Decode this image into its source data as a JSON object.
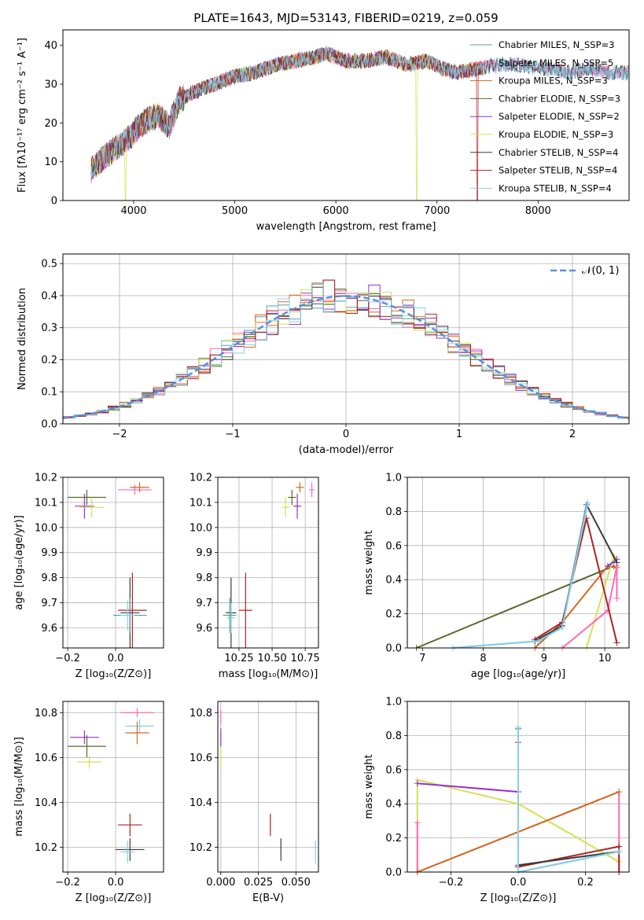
{
  "figure_title": "PLATE=1643, MJD=53143, FIBERID=0219, z=0.059",
  "colors": {
    "Chabrier MILES": "#5f9ea0",
    "Salpeter MILES": "#ff69b4",
    "Kroupa MILES": "#d2691e",
    "Chabrier ELODIE": "#556b2f",
    "Salpeter ELODIE": "#9932cc",
    "Kroupa ELODIE": "#d4e157",
    "Chabrier STELIB": "#3a3a3a",
    "Salpeter STELIB": "#b22222",
    "Kroupa STELIB": "#87ceeb",
    "normal_curve": "#5b8fdc"
  },
  "chart_data": [
    {
      "id": "spectrum",
      "type": "line",
      "xlabel": "wavelength [Angstrom, rest frame]",
      "ylabel": "Flux [fλ10⁻¹⁷ erg cm⁻² s⁻¹ A⁻¹]",
      "xlim": [
        3300,
        8900
      ],
      "ylim": [
        0,
        44
      ],
      "xticks": [
        4000,
        5000,
        6000,
        7000,
        8000
      ],
      "yticks": [
        0,
        10,
        20,
        30,
        40
      ],
      "grid": false,
      "legend": "top-right",
      "legend_entries": [
        "Chabrier MILES, N_SSP=3",
        "Salpeter MILES, N_SSP=5",
        "Kroupa MILES, N_SSP=3",
        "Chabrier ELODIE, N_SSP=3",
        "Salpeter ELODIE, N_SSP=2",
        "Kroupa ELODIE, N_SSP=3",
        "Chabrier STELIB, N_SSP=4",
        "Salpeter STELIB, N_SSP=4",
        "Kroupa STELIB, N_SSP=4"
      ],
      "legend_series": [
        "Chabrier MILES",
        "Salpeter MILES",
        "Kroupa MILES",
        "Chabrier ELODIE",
        "Salpeter ELODIE",
        "Kroupa ELODIE",
        "Chabrier STELIB",
        "Salpeter STELIB",
        "Kroupa STELIB"
      ],
      "continuum": [
        [
          3580,
          8
        ],
        [
          3650,
          10
        ],
        [
          3750,
          12
        ],
        [
          3850,
          14
        ],
        [
          3950,
          16
        ],
        [
          4050,
          19
        ],
        [
          4150,
          21
        ],
        [
          4250,
          22
        ],
        [
          4350,
          19
        ],
        [
          4450,
          26
        ],
        [
          4600,
          28
        ],
        [
          4800,
          30
        ],
        [
          5000,
          32
        ],
        [
          5200,
          33
        ],
        [
          5300,
          34
        ],
        [
          5400,
          35
        ],
        [
          5600,
          36
        ],
        [
          5800,
          37
        ],
        [
          5900,
          38
        ],
        [
          6100,
          36
        ],
        [
          6300,
          36
        ],
        [
          6500,
          37
        ],
        [
          6700,
          35
        ],
        [
          6900,
          36
        ],
        [
          7050,
          34
        ],
        [
          7200,
          33
        ],
        [
          7400,
          34
        ],
        [
          7600,
          35
        ],
        [
          7800,
          35
        ],
        [
          8000,
          34
        ],
        [
          8150,
          34
        ],
        [
          8300,
          33
        ],
        [
          8500,
          34
        ],
        [
          8700,
          33
        ],
        [
          8900,
          33
        ]
      ],
      "dropouts": [
        {
          "series": "Kroupa ELODIE",
          "x": 3920
        },
        {
          "series": "Kroupa ELODIE",
          "x": 6800
        },
        {
          "series": "Salpeter STELIB",
          "x": 7400
        }
      ]
    },
    {
      "id": "residuals",
      "type": "step",
      "xlabel": "(data-model)/error",
      "ylabel": "Normed distribution",
      "xlim": [
        -2.5,
        2.5
      ],
      "ylim": [
        0,
        0.53
      ],
      "xticks": [
        -2,
        -1,
        0,
        1,
        2
      ],
      "yticks": [
        0.0,
        0.1,
        0.2,
        0.3,
        0.4,
        0.5
      ],
      "grid": true,
      "legend": "top-right",
      "legend_entries": [
        "𝒩(0, 1)"
      ],
      "bin_width": 0.1
    },
    {
      "id": "age_vs_Z",
      "type": "errorbar",
      "xlabel": "Z [log₁₀(Z/Z⊙)]",
      "ylabel": "age  [log₁₀(age/yr)]",
      "xlim": [
        -0.22,
        0.2
      ],
      "ylim": [
        9.52,
        10.2
      ],
      "xticks": [
        -0.2,
        0.0
      ],
      "xticklabels": [
        "−0.2",
        "0.0"
      ],
      "yticks": [
        9.6,
        9.7,
        9.8,
        9.9,
        10.0,
        10.1,
        10.2
      ],
      "grid": true,
      "points": [
        {
          "series": "Chabrier ELODIE",
          "x": -0.12,
          "y": 10.12,
          "xerr": 0.08,
          "yerr": 0.03
        },
        {
          "series": "Salpeter ELODIE",
          "x": -0.13,
          "y": 10.085,
          "xerr": 0.04,
          "yerr": 0.05
        },
        {
          "series": "Kroupa ELODIE",
          "x": -0.1,
          "y": 10.08,
          "xerr": 0.05,
          "yerr": 0.04
        },
        {
          "series": "Salpeter MILES",
          "x": 0.08,
          "y": 10.15,
          "xerr": 0.07,
          "yerr": 0.02
        },
        {
          "series": "Kroupa MILES",
          "x": 0.1,
          "y": 10.16,
          "xerr": 0.04,
          "yerr": 0.02
        },
        {
          "series": "Chabrier STELIB",
          "x": 0.06,
          "y": 9.66,
          "xerr": 0.04,
          "yerr": 0.14
        },
        {
          "series": "Salpeter STELIB",
          "x": 0.07,
          "y": 9.67,
          "xerr": 0.06,
          "yerr": 0.15
        },
        {
          "series": "Chabrier MILES",
          "x": 0.06,
          "y": 9.65,
          "xerr": 0.07,
          "yerr": 0.07
        },
        {
          "series": "Kroupa STELIB",
          "x": 0.05,
          "y": 9.65,
          "xerr": 0.03,
          "yerr": 0.06
        }
      ]
    },
    {
      "id": "age_vs_mass",
      "type": "errorbar",
      "xlabel": "mass [log₁₀(M/M⊙)]",
      "ylabel": "",
      "xlim": [
        10.09,
        10.85
      ],
      "ylim": [
        9.52,
        10.2
      ],
      "xticks": [
        10.25,
        10.5,
        10.75
      ],
      "xticklabels": [
        "10.25",
        "10.50",
        "10.75"
      ],
      "yticks": [
        9.6,
        9.7,
        9.8,
        9.9,
        10.0,
        10.1,
        10.2
      ],
      "grid": true,
      "points": [
        {
          "series": "Chabrier STELIB",
          "x": 10.19,
          "y": 9.66,
          "xerr": 0.04,
          "yerr": 0.14
        },
        {
          "series": "Kroupa STELIB",
          "x": 10.19,
          "y": 9.64,
          "xerr": 0.03,
          "yerr": 0.06
        },
        {
          "series": "Chabrier MILES",
          "x": 10.18,
          "y": 9.65,
          "xerr": 0.05,
          "yerr": 0.07
        },
        {
          "series": "Salpeter STELIB",
          "x": 10.3,
          "y": 9.67,
          "xerr": 0.05,
          "yerr": 0.15
        },
        {
          "series": "Kroupa ELODIE",
          "x": 10.6,
          "y": 10.08,
          "xerr": 0.03,
          "yerr": 0.04
        },
        {
          "series": "Chabrier ELODIE",
          "x": 10.65,
          "y": 10.12,
          "xerr": 0.03,
          "yerr": 0.03
        },
        {
          "series": "Salpeter ELODIE",
          "x": 10.69,
          "y": 10.085,
          "xerr": 0.03,
          "yerr": 0.05
        },
        {
          "series": "Kroupa MILES",
          "x": 10.71,
          "y": 10.16,
          "xerr": 0.03,
          "yerr": 0.02
        },
        {
          "series": "Salpeter MILES",
          "x": 10.8,
          "y": 10.15,
          "xerr": 0.02,
          "yerr": 0.03
        }
      ]
    },
    {
      "id": "weight_vs_age",
      "type": "line",
      "xlabel": "age  [log₁₀(age/yr)]",
      "ylabel": "mass weight",
      "xlim": [
        6.75,
        10.4
      ],
      "ylim": [
        0,
        1.0
      ],
      "xticks": [
        7,
        8,
        9,
        10
      ],
      "yticks": [
        0.0,
        0.2,
        0.4,
        0.6,
        0.8,
        1.0
      ],
      "grid": true,
      "series": [
        {
          "series": "Chabrier ELODIE",
          "x": [
            6.9,
            10.15
          ],
          "y": [
            0.0,
            0.48
          ]
        },
        {
          "series": "Kroupa MILES",
          "x": [
            8.85,
            9.3,
            10.05,
            10.2
          ],
          "y": [
            0.0,
            0.15,
            0.48,
            0.47
          ]
        },
        {
          "series": "Kroupa ELODIE",
          "x": [
            9.7,
            10.15,
            10.2
          ],
          "y": [
            0.0,
            0.54,
            0.52
          ]
        },
        {
          "series": "Salpeter MILES",
          "x": [
            9.3,
            10.05,
            10.2,
            10.2
          ],
          "y": [
            0.0,
            0.22,
            0.48,
            0.29
          ]
        },
        {
          "series": "Salpeter ELODIE",
          "x": [
            10.05,
            10.2
          ],
          "y": [
            0.48,
            0.52
          ]
        },
        {
          "series": "Salpeter STELIB",
          "x": [
            8.85,
            9.3,
            9.7,
            10.2
          ],
          "y": [
            0.05,
            0.15,
            0.76,
            0.03
          ]
        },
        {
          "series": "Chabrier STELIB",
          "x": [
            8.85,
            9.3,
            9.7,
            10.2
          ],
          "y": [
            0.04,
            0.13,
            0.84,
            0.5
          ]
        },
        {
          "series": "Chabrier MILES",
          "x": [
            7.5,
            8.9,
            9.3,
            9.7
          ],
          "y": [
            0.0,
            0.04,
            0.12,
            0.84
          ]
        },
        {
          "series": "Kroupa STELIB",
          "x": [
            7.5,
            8.9,
            9.3,
            9.72
          ],
          "y": [
            0.0,
            0.04,
            0.12,
            0.85
          ]
        }
      ]
    },
    {
      "id": "mass_vs_Z",
      "type": "errorbar",
      "xlabel": "Z [log₁₀(Z/Z⊙)]",
      "ylabel": "mass [log₁₀(M/M⊙)]",
      "xlim": [
        -0.22,
        0.2
      ],
      "ylim": [
        10.09,
        10.85
      ],
      "xticks": [
        -0.2,
        0.0
      ],
      "xticklabels": [
        "−0.2",
        "0.0"
      ],
      "yticks": [
        10.2,
        10.4,
        10.6,
        10.8
      ],
      "grid": true,
      "points": [
        {
          "series": "Salpeter ELODIE",
          "x": -0.13,
          "y": 10.69,
          "xerr": 0.06,
          "yerr": 0.03
        },
        {
          "series": "Chabrier ELODIE",
          "x": -0.12,
          "y": 10.65,
          "xerr": 0.08,
          "yerr": 0.05
        },
        {
          "series": "Kroupa ELODIE",
          "x": -0.11,
          "y": 10.58,
          "xerr": 0.05,
          "yerr": 0.03
        },
        {
          "series": "Salpeter MILES",
          "x": 0.09,
          "y": 10.8,
          "xerr": 0.07,
          "yerr": 0.02
        },
        {
          "series": "Kroupa STELIB",
          "x": 0.1,
          "y": 10.74,
          "xerr": 0.06,
          "yerr": 0.03
        },
        {
          "series": "Kroupa MILES",
          "x": 0.09,
          "y": 10.71,
          "xerr": 0.05,
          "yerr": 0.05
        },
        {
          "series": "Salpeter STELIB",
          "x": 0.06,
          "y": 10.3,
          "xerr": 0.05,
          "yerr": 0.05
        },
        {
          "series": "Chabrier STELIB",
          "x": 0.06,
          "y": 10.19,
          "xerr": 0.06,
          "yerr": 0.05
        },
        {
          "series": "Kroupa STELIB",
          "x": 0.05,
          "y": 10.18,
          "xerr": 0.03,
          "yerr": 0.05
        }
      ]
    },
    {
      "id": "mass_vs_ebv",
      "type": "errorbar",
      "xlabel": "E(B-V)",
      "ylabel": "",
      "xlim": [
        -0.002,
        0.065
      ],
      "ylim": [
        10.09,
        10.85
      ],
      "xticks": [
        0.0,
        0.025,
        0.05
      ],
      "xticklabels": [
        "0.000",
        "0.025",
        "0.050"
      ],
      "yticks": [
        10.2,
        10.4,
        10.6,
        10.8
      ],
      "grid": true,
      "points": [
        {
          "series": "Salpeter MILES",
          "x": 0.0,
          "y": 10.78,
          "xerr": 0,
          "yerr": 0.03
        },
        {
          "series": "Salpeter ELODIE",
          "x": 0.0,
          "y": 10.69,
          "xerr": 0,
          "yerr": 0.04
        },
        {
          "series": "Kroupa ELODIE",
          "x": 0.0,
          "y": 10.6,
          "xerr": 0,
          "yerr": 0.04
        },
        {
          "series": "Salpeter STELIB",
          "x": 0.033,
          "y": 10.3,
          "xerr": 0,
          "yerr": 0.05
        },
        {
          "series": "Chabrier STELIB",
          "x": 0.04,
          "y": 10.19,
          "xerr": 0,
          "yerr": 0.05
        },
        {
          "series": "Kroupa STELIB",
          "x": 0.063,
          "y": 10.18,
          "xerr": 0,
          "yerr": 0.05
        }
      ]
    },
    {
      "id": "weight_vs_Z",
      "type": "line",
      "xlabel": "Z [log₁₀(Z/Z⊙)]",
      "ylabel": "mass weight",
      "xlim": [
        -0.33,
        0.33
      ],
      "ylim": [
        0,
        1.0
      ],
      "xticks": [
        -0.2,
        0.0,
        0.2
      ],
      "xticklabels": [
        "−0.2",
        "0.0",
        "0.2"
      ],
      "yticks": [
        0.0,
        0.2,
        0.4,
        0.6,
        0.8,
        1.0
      ],
      "grid": true,
      "series": [
        {
          "series": "Kroupa ELODIE",
          "x": [
            -0.3,
            -0.3,
            0.0,
            0.3
          ],
          "y": [
            0.0,
            0.54,
            0.4,
            0.06
          ]
        },
        {
          "series": "Salpeter ELODIE",
          "x": [
            -0.3,
            0.0
          ],
          "y": [
            0.52,
            0.47
          ]
        },
        {
          "series": "Salpeter MILES",
          "x": [
            -0.3,
            -0.3,
            0.3,
            0.3
          ],
          "y": [
            0.29,
            0.0,
            0.47,
            0.0
          ]
        },
        {
          "series": "Kroupa MILES",
          "x": [
            -0.3,
            0.3
          ],
          "y": [
            0.0,
            0.47
          ]
        },
        {
          "series": "Salpeter STELIB",
          "x": [
            0.0,
            0.0,
            0.3,
            0.3
          ],
          "y": [
            0.76,
            0.03,
            0.15,
            0.0
          ]
        },
        {
          "series": "Chabrier STELIB",
          "x": [
            0.0,
            0.0,
            0.3
          ],
          "y": [
            0.84,
            0.04,
            0.12
          ]
        },
        {
          "series": "Chabrier MILES",
          "x": [
            0.0,
            0.0,
            0.3
          ],
          "y": [
            0.84,
            0.0,
            0.12
          ]
        },
        {
          "series": "Kroupa STELIB",
          "x": [
            0.0,
            0.0,
            0.3
          ],
          "y": [
            0.85,
            0.0,
            0.12
          ]
        }
      ]
    }
  ]
}
